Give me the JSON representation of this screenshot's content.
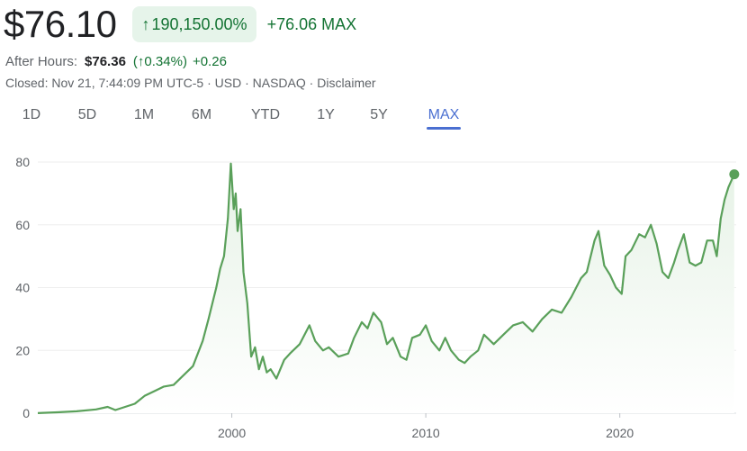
{
  "quote": {
    "price": "$76.10",
    "pct_arrow": "↑",
    "pct_change": "190,150.00%",
    "abs_change": "+76.06",
    "period": "MAX"
  },
  "after_hours": {
    "label": "After Hours:",
    "price": "$76.36",
    "pct": "(↑0.34%)",
    "change": "+0.26"
  },
  "closed": {
    "text": "Closed: Nov 21, 7:44:09 PM UTC-5 · USD · NASDAQ · ",
    "disclaimer": "Disclaimer"
  },
  "tabs": [
    "1D",
    "5D",
    "1M",
    "6M",
    "YTD",
    "1Y",
    "5Y",
    "MAX"
  ],
  "active_tab": "MAX",
  "colors": {
    "line": "#5aa05a",
    "fill_top": "#e8f3e8",
    "gain": "#137333",
    "active_tab": "#4a6fd1"
  },
  "chart_data": {
    "type": "area",
    "x": [
      1990.0,
      1991.0,
      1992.0,
      1993.0,
      1993.6,
      1994.0,
      1995.0,
      1995.5,
      1996.0,
      1996.5,
      1997.0,
      1997.5,
      1998.0,
      1998.5,
      1998.8,
      1999.0,
      1999.2,
      1999.4,
      1999.6,
      1999.8,
      1999.95,
      2000.1,
      2000.2,
      2000.3,
      2000.45,
      2000.6,
      2000.8,
      2001.0,
      2001.2,
      2001.4,
      2001.6,
      2001.8,
      2002.0,
      2002.3,
      2002.7,
      2003.0,
      2003.5,
      2004.0,
      2004.3,
      2004.7,
      2005.0,
      2005.5,
      2006.0,
      2006.3,
      2006.7,
      2007.0,
      2007.3,
      2007.7,
      2008.0,
      2008.3,
      2008.7,
      2009.0,
      2009.3,
      2009.7,
      2010.0,
      2010.3,
      2010.7,
      2011.0,
      2011.3,
      2011.7,
      2012.0,
      2012.3,
      2012.7,
      2013.0,
      2013.5,
      2014.0,
      2014.5,
      2015.0,
      2015.5,
      2016.0,
      2016.5,
      2017.0,
      2017.5,
      2018.0,
      2018.3,
      2018.7,
      2018.9,
      2019.2,
      2019.5,
      2019.8,
      2020.1,
      2020.3,
      2020.6,
      2021.0,
      2021.3,
      2021.6,
      2021.9,
      2022.2,
      2022.5,
      2022.8,
      2023.0,
      2023.3,
      2023.6,
      2023.9,
      2024.2,
      2024.5,
      2024.8,
      2025.0,
      2025.2,
      2025.4,
      2025.6,
      2025.9
    ],
    "y": [
      0.04,
      0.3,
      0.6,
      1.2,
      2.0,
      1.0,
      3.0,
      5.5,
      7.0,
      8.5,
      9.0,
      12.0,
      15.0,
      23.0,
      30.0,
      35.0,
      40.0,
      46.0,
      50.0,
      62.0,
      79.5,
      65.0,
      70.0,
      58.0,
      65.0,
      45.0,
      35.0,
      18.0,
      21.0,
      14.0,
      18.0,
      13.0,
      14.0,
      11.0,
      17.0,
      19.0,
      22.0,
      28.0,
      23.0,
      20.0,
      21.0,
      18.0,
      19.0,
      24.0,
      29.0,
      27.0,
      32.0,
      29.0,
      22.0,
      24.0,
      18.0,
      17.0,
      24.0,
      25.0,
      28.0,
      23.0,
      20.0,
      24.0,
      20.0,
      17.0,
      16.0,
      18.0,
      20.0,
      25.0,
      22.0,
      25.0,
      28.0,
      29.0,
      26.0,
      30.0,
      33.0,
      32.0,
      37.0,
      43.0,
      45.0,
      55.0,
      58.0,
      47.0,
      44.0,
      40.0,
      38.0,
      50.0,
      52.0,
      57.0,
      56.0,
      60.0,
      54.0,
      45.0,
      43.0,
      48.0,
      52.0,
      57.0,
      48.0,
      47.0,
      48.0,
      55.0,
      55.0,
      50.0,
      62.0,
      68.0,
      72.0,
      76.1
    ],
    "xticks": [
      "2000",
      "2010",
      "2020"
    ],
    "xtick_values": [
      2000,
      2010,
      2020
    ],
    "yticks": [
      "0",
      "20",
      "40",
      "60",
      "80"
    ],
    "ytick_values": [
      0,
      20,
      40,
      60,
      80
    ],
    "xlim": [
      1990.0,
      2026.0
    ],
    "ylim": [
      0,
      80
    ],
    "grid": true
  }
}
